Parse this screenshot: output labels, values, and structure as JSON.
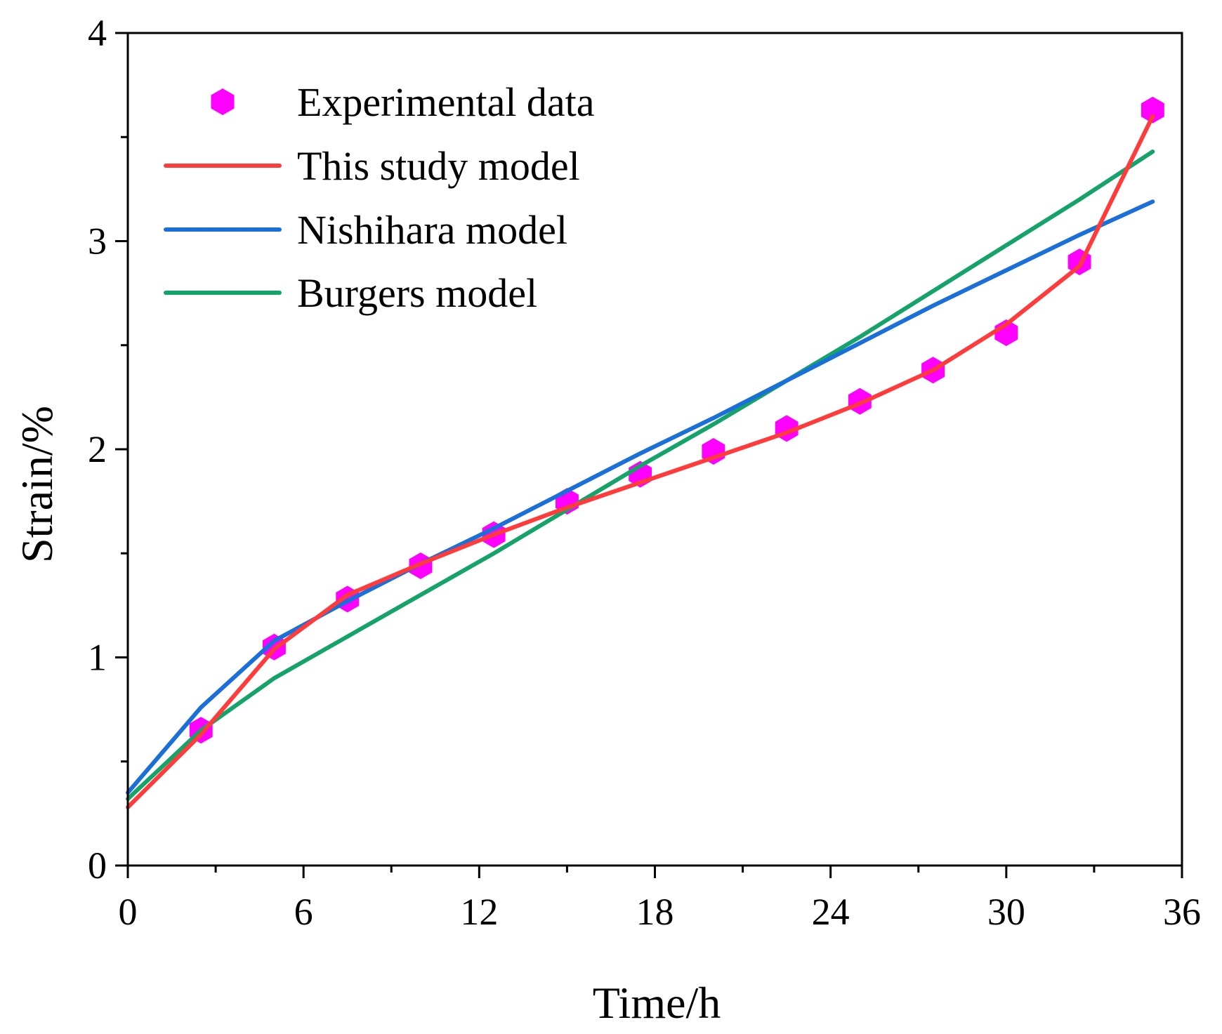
{
  "chart_data": {
    "type": "line",
    "title": "",
    "xlabel": "Time/h",
    "ylabel": "Strain/%",
    "xlim": [
      0,
      36
    ],
    "ylim": [
      0,
      4
    ],
    "xticks": [
      0,
      6,
      12,
      18,
      24,
      30,
      36
    ],
    "yticks": [
      0,
      1,
      2,
      3,
      4
    ],
    "xtick_labels": [
      "0",
      "6",
      "12",
      "18",
      "24",
      "30",
      "36"
    ],
    "ytick_labels": [
      "0",
      "1",
      "2",
      "3",
      "4"
    ],
    "legend_position": "top-left",
    "series": [
      {
        "name": "Experimental data",
        "kind": "scatter",
        "marker": "hexagon",
        "color": "#ff00ff",
        "x": [
          2.5,
          5,
          7.5,
          10,
          12.5,
          15,
          17.5,
          20,
          22.5,
          25,
          27.5,
          30,
          32.5,
          35
        ],
        "y": [
          0.65,
          1.05,
          1.28,
          1.44,
          1.59,
          1.75,
          1.88,
          1.99,
          2.1,
          2.23,
          2.38,
          2.56,
          2.9,
          3.63
        ]
      },
      {
        "name": "This study model",
        "kind": "line",
        "color": "#ff3b3b",
        "x": [
          0,
          2.5,
          5,
          7.5,
          10,
          12.5,
          15,
          17.5,
          20,
          22.5,
          25,
          27.5,
          30,
          32.5,
          35
        ],
        "y": [
          0.28,
          0.63,
          1.04,
          1.3,
          1.45,
          1.59,
          1.72,
          1.84,
          1.96,
          2.08,
          2.22,
          2.38,
          2.6,
          2.88,
          3.6
        ]
      },
      {
        "name": "Nishihara model",
        "kind": "line",
        "color": "#1a6fd9",
        "x": [
          0,
          2.5,
          5,
          7.5,
          10,
          12.5,
          15,
          17.5,
          20,
          22.5,
          25,
          27.5,
          30,
          32.5,
          35
        ],
        "y": [
          0.35,
          0.76,
          1.08,
          1.27,
          1.45,
          1.62,
          1.8,
          1.98,
          2.15,
          2.33,
          2.51,
          2.69,
          2.86,
          3.03,
          3.19
        ]
      },
      {
        "name": "Burgers model",
        "kind": "line",
        "color": "#16a36a",
        "x": [
          0,
          2.5,
          5,
          7.5,
          10,
          12.5,
          15,
          17.5,
          20,
          22.5,
          25,
          27.5,
          30,
          32.5,
          35
        ],
        "y": [
          0.32,
          0.65,
          0.9,
          1.1,
          1.3,
          1.5,
          1.71,
          1.92,
          2.12,
          2.33,
          2.54,
          2.76,
          2.98,
          3.2,
          3.43
        ]
      }
    ]
  }
}
